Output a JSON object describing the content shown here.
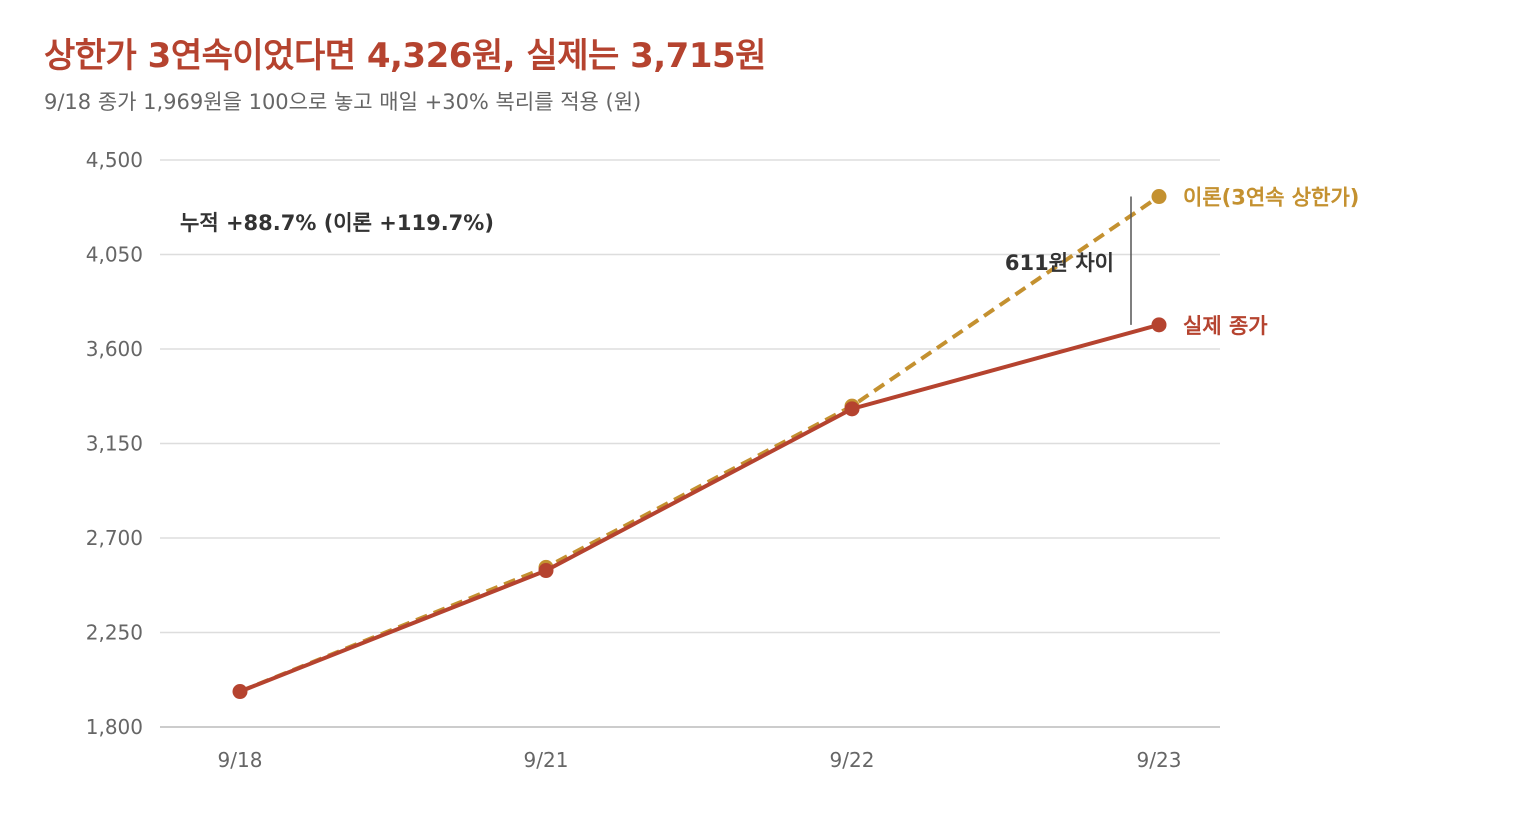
{
  "header": {
    "title": "상한가 3연속이었다면 4,326원, 실제는 3,715원",
    "subtitle": "9/18 종가 1,969원을 100으로 놓고 매일 +30% 복리를 적용 (원)"
  },
  "colors": {
    "actual": "#b5432f",
    "theory": "#c49130",
    "grid": "#dddddd",
    "gap_line": "#555555"
  },
  "chart_data": {
    "type": "line",
    "categories": [
      "9/18",
      "9/21",
      "9/22",
      "9/23"
    ],
    "y_ticks": [
      "4,500",
      "4,050",
      "3,600",
      "3,150",
      "2,700",
      "2,250",
      "1,800"
    ],
    "y_tick_values": [
      4500,
      4050,
      3600,
      3150,
      2700,
      2250,
      1800
    ],
    "ylim": [
      1800,
      4500
    ],
    "grid": true,
    "series": [
      {
        "name": "이론(3연속 상한가)",
        "style": "dashed",
        "values": [
          1969,
          2560,
          3328,
          4326
        ]
      },
      {
        "name": "실제 종가",
        "style": "solid",
        "values": [
          1969,
          2545,
          3315,
          3715
        ]
      }
    ],
    "annotations": {
      "cumulative": "누적 +88.7% (이론 +119.7%)",
      "gap": "611원 차이"
    }
  }
}
